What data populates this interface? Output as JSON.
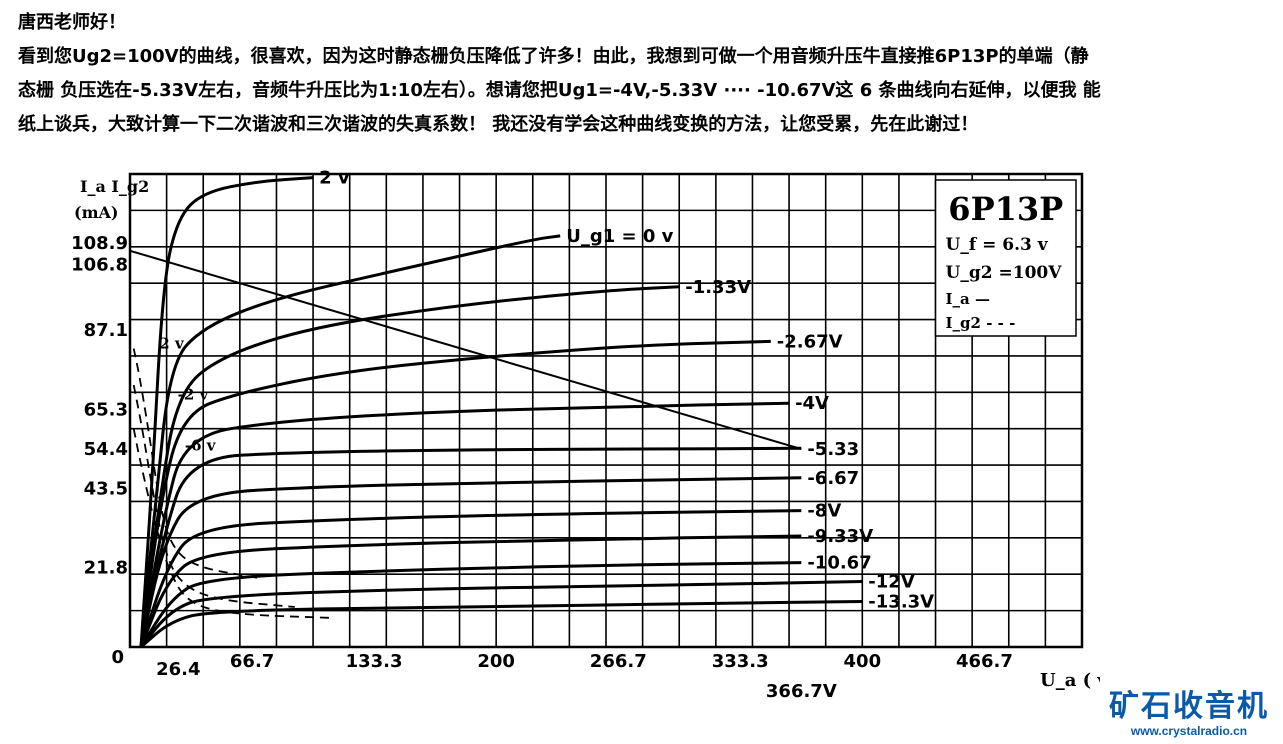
{
  "post": {
    "greeting": "唐西老师好！",
    "line1": "看到您Ug2=100V的曲线，很喜欢，因为这时静态栅负压降低了许多！由此，我想到可做一个用音频升压牛直接推6P13P的单端（静",
    "line2": "态栅 负压选在-5.33V左右，音频牛升压比为1:10左右）。想请您把Ug1=-4V,-5.33V ····  -10.67V这 6 条曲线向右延伸，以便我 能",
    "line3": "纸上谈兵，大致计算一下二次谐波和三次谐波的失真系数！ 我还没有学会这种曲线变换的方法，让您受累，先在此谢过！"
  },
  "colors": {
    "ink": "#000000",
    "watermark": "#0b5aa8"
  },
  "watermark": {
    "logo": "矿石收音机",
    "url": "www.crystalradio.cn"
  },
  "chart_data": {
    "type": "line",
    "tube": "6P13P",
    "params": {
      "uf": "U_f = 6.3 v",
      "ug2": "U_g2 =100V",
      "ia_legend": "I_a —",
      "ig2_legend": "I_g2 - - -"
    },
    "ylabel": "I_a I_g2 (mA)",
    "xlabel": "U_a ( v )",
    "origin_label": "0",
    "xlim": [
      0,
      520
    ],
    "ylim": [
      0,
      130
    ],
    "grid": true,
    "x_ticks": [
      {
        "value": 26.4,
        "label": "26.4"
      },
      {
        "value": 66.7,
        "label": "66.7"
      },
      {
        "value": 133.3,
        "label": "133.3"
      },
      {
        "value": 200,
        "label": "200"
      },
      {
        "value": 266.7,
        "label": "266.7"
      },
      {
        "value": 333.3,
        "label": "333.3"
      },
      {
        "value": 366.7,
        "label": "366.7V"
      },
      {
        "value": 400,
        "label": "400"
      },
      {
        "value": 466.7,
        "label": "466.7"
      }
    ],
    "y_ticks": [
      {
        "value": 108.9,
        "label": "108.9"
      },
      {
        "value": 106.8,
        "label": "106.8"
      },
      {
        "value": 87.1,
        "label": "87.1"
      },
      {
        "value": 65.3,
        "label": "65.3"
      },
      {
        "value": 54.4,
        "label": "54.4"
      },
      {
        "value": 43.5,
        "label": "43.5"
      },
      {
        "value": 21.8,
        "label": "21.8"
      }
    ],
    "load_line": [
      [
        0,
        108.9
      ],
      [
        366.7,
        54.4
      ]
    ],
    "plate_curves": [
      {
        "name": "2 v",
        "points": [
          [
            6,
            0
          ],
          [
            12,
            45
          ],
          [
            18,
            100
          ],
          [
            26,
            118
          ],
          [
            40,
            125
          ],
          [
            70,
            128
          ],
          [
            100,
            129
          ]
        ],
        "label_at": [
          100,
          129
        ]
      },
      {
        "name": "U_g1 = 0 v",
        "points": [
          [
            6,
            0
          ],
          [
            14,
            40
          ],
          [
            22,
            78
          ],
          [
            40,
            88
          ],
          [
            80,
            96
          ],
          [
            150,
            104
          ],
          [
            220,
            112
          ],
          [
            235,
            113
          ]
        ],
        "label_at": [
          235,
          113
        ]
      },
      {
        "name": "-1.33V",
        "points": [
          [
            6,
            0
          ],
          [
            16,
            40
          ],
          [
            26,
            70
          ],
          [
            50,
            80
          ],
          [
            100,
            88
          ],
          [
            180,
            94
          ],
          [
            260,
            98
          ],
          [
            300,
            99
          ]
        ],
        "label_at": [
          300,
          99
        ]
      },
      {
        "name": "-2.67V",
        "points": [
          [
            6,
            0
          ],
          [
            16,
            38
          ],
          [
            28,
            64
          ],
          [
            60,
            70
          ],
          [
            120,
            76
          ],
          [
            200,
            80
          ],
          [
            280,
            83
          ],
          [
            350,
            84
          ]
        ],
        "label_at": [
          350,
          84
        ]
      },
      {
        "name": "-4V",
        "points": [
          [
            6,
            0
          ],
          [
            18,
            35
          ],
          [
            30,
            58
          ],
          [
            80,
            62
          ],
          [
            160,
            64.5
          ],
          [
            260,
            66
          ],
          [
            360,
            67
          ]
        ],
        "label_at": [
          360,
          67
        ]
      },
      {
        "name": "-5.33",
        "points": [
          [
            6,
            0
          ],
          [
            18,
            30
          ],
          [
            32,
            52
          ],
          [
            90,
            53.5
          ],
          [
            180,
            54.2
          ],
          [
            280,
            54.4
          ],
          [
            366.7,
            54.6
          ]
        ],
        "label_at": [
          366.7,
          54.4
        ]
      },
      {
        "name": "-6.67",
        "points": [
          [
            6,
            0
          ],
          [
            18,
            28
          ],
          [
            34,
            42
          ],
          [
            100,
            44
          ],
          [
            200,
            45.2
          ],
          [
            300,
            46
          ],
          [
            366.7,
            46.5
          ]
        ],
        "label_at": [
          366.7,
          46.5
        ]
      },
      {
        "name": "-8V",
        "points": [
          [
            6,
            0
          ],
          [
            20,
            22
          ],
          [
            36,
            33
          ],
          [
            110,
            35
          ],
          [
            220,
            36.5
          ],
          [
            366.7,
            37.5
          ]
        ],
        "label_at": [
          366.7,
          37.5
        ]
      },
      {
        "name": "-9.33V",
        "points": [
          [
            6,
            0
          ],
          [
            20,
            18
          ],
          [
            38,
            26
          ],
          [
            120,
            28
          ],
          [
            240,
            29.5
          ],
          [
            366.7,
            30.5
          ]
        ],
        "label_at": [
          366.7,
          30.5
        ]
      },
      {
        "name": "-10.67",
        "points": [
          [
            6,
            0
          ],
          [
            22,
            13
          ],
          [
            40,
            19
          ],
          [
            140,
            21
          ],
          [
            260,
            22.5
          ],
          [
            366.7,
            23.2
          ]
        ],
        "label_at": [
          366.7,
          23.2
        ]
      },
      {
        "name": "-12V",
        "points": [
          [
            6,
            0
          ],
          [
            22,
            10
          ],
          [
            42,
            14
          ],
          [
            160,
            16
          ],
          [
            300,
            17
          ],
          [
            400,
            18
          ]
        ],
        "label_at": [
          400,
          18
        ]
      },
      {
        "name": "-13.3V",
        "points": [
          [
            6,
            0
          ],
          [
            22,
            7
          ],
          [
            44,
            10
          ],
          [
            180,
            11
          ],
          [
            320,
            12
          ],
          [
            400,
            12.5
          ]
        ],
        "label_at": [
          400,
          12.5
        ]
      }
    ],
    "screen_curves": [
      {
        "name": "2 v",
        "points": [
          [
            2,
            82
          ],
          [
            5,
            75
          ],
          [
            10,
            60
          ],
          [
            16,
            40
          ],
          [
            22,
            28
          ],
          [
            35,
            22
          ],
          [
            70,
            19
          ]
        ],
        "label_at": [
          16,
          82
        ]
      },
      {
        "name": "-2 v",
        "points": [
          [
            2,
            72
          ],
          [
            6,
            62
          ],
          [
            12,
            44
          ],
          [
            18,
            28
          ],
          [
            26,
            18
          ],
          [
            45,
            13
          ],
          [
            90,
            11
          ]
        ],
        "label_at": [
          26,
          68
        ]
      },
      {
        "name": "-6 v",
        "points": [
          [
            2,
            60
          ],
          [
            6,
            50
          ],
          [
            14,
            33
          ],
          [
            22,
            20
          ],
          [
            32,
            12
          ],
          [
            55,
            9
          ],
          [
            110,
            8
          ]
        ],
        "label_at": [
          30,
          54
        ]
      }
    ]
  }
}
